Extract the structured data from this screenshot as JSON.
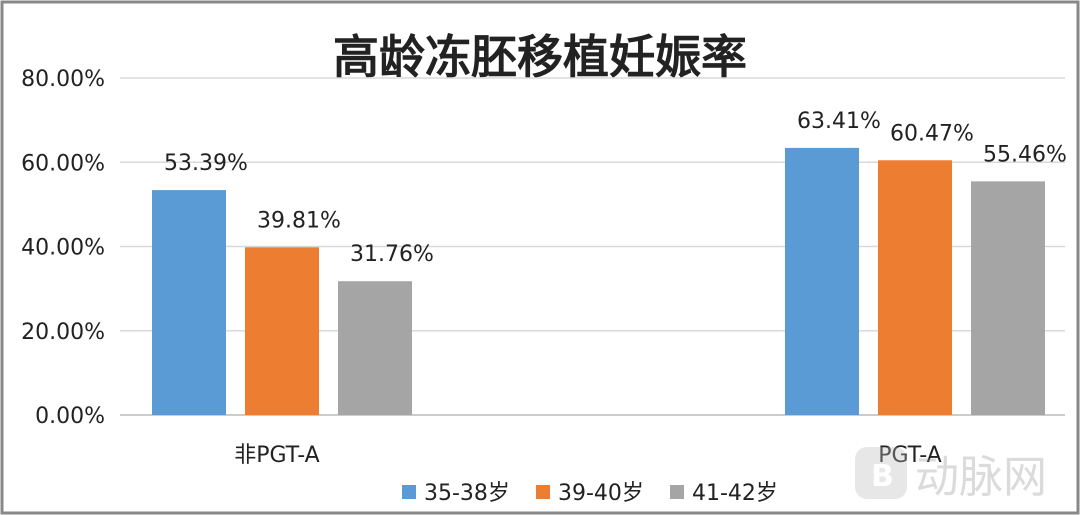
{
  "chart_data": {
    "type": "bar",
    "title": "高龄冻胚移植妊娠率",
    "categories": [
      "非PGT-A",
      "PGT-A"
    ],
    "series": [
      {
        "name": "35-38岁",
        "color": "#5b9bd5",
        "values": [
          53.39,
          63.41
        ],
        "labels": [
          "53.39%",
          "63.41%"
        ]
      },
      {
        "name": "39-40岁",
        "color": "#ed7d31",
        "values": [
          39.81,
          60.47
        ],
        "labels": [
          "39.81%",
          "60.47%"
        ]
      },
      {
        "name": "41-42岁",
        "color": "#a5a5a5",
        "values": [
          31.76,
          55.46
        ],
        "labels": [
          "31.76%",
          "55.46%"
        ]
      }
    ],
    "yticks": [
      "0.00%",
      "20.00%",
      "40.00%",
      "60.00%",
      "80.00%"
    ],
    "ylim": [
      0,
      80
    ],
    "grid": true,
    "legend": "bottom"
  },
  "watermark": "动脉网"
}
